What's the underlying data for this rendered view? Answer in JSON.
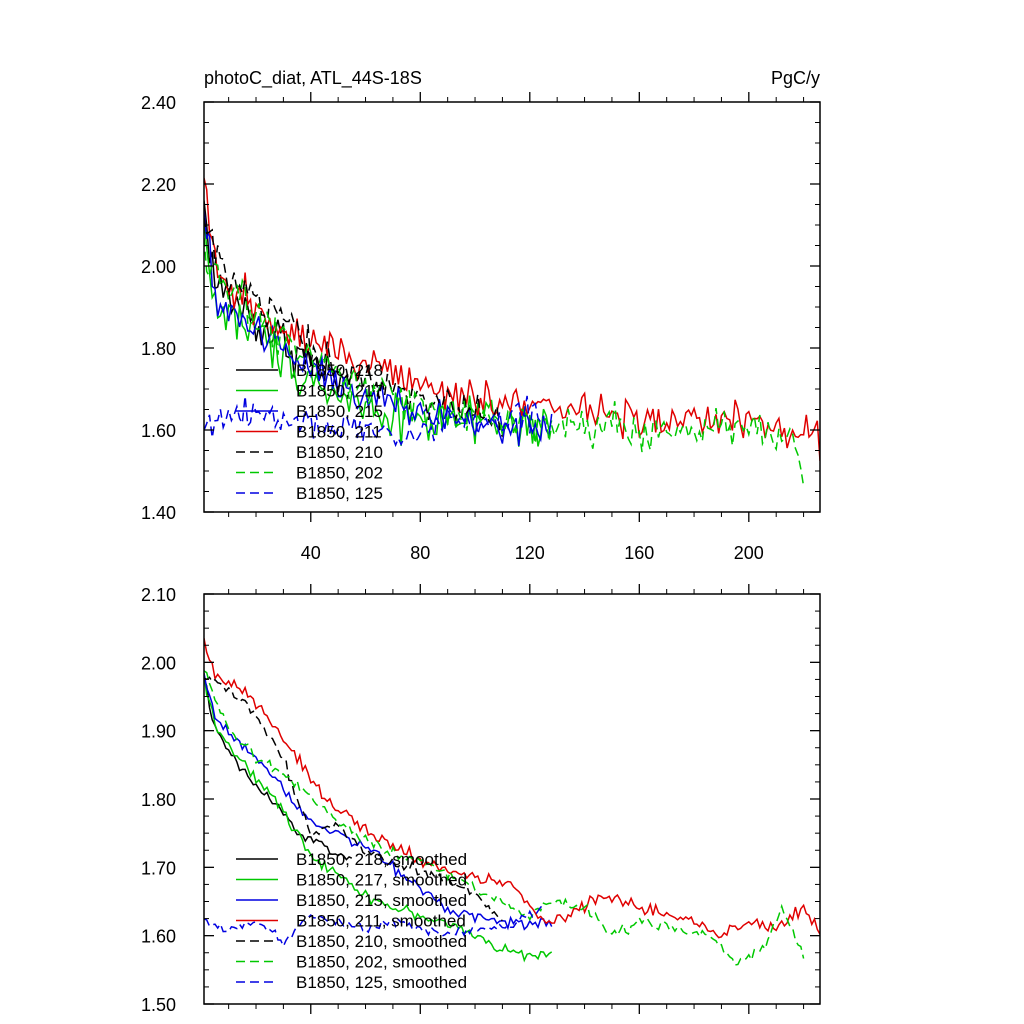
{
  "chart_data": [
    {
      "type": "line",
      "title": "photoC_diat, ATL_44S-18S",
      "units": "PgC/y",
      "xlim": [
        1,
        226
      ],
      "ylim": [
        1.4,
        2.4
      ],
      "xticks": [
        40,
        80,
        120,
        160,
        200
      ],
      "xtick_labels": [
        "40",
        "80",
        "120",
        "160",
        "200"
      ],
      "yticks": [
        1.4,
        1.6,
        1.8,
        2.0,
        2.2,
        2.4
      ],
      "ytick_labels": [
        "1.40",
        "1.60",
        "1.80",
        "2.00",
        "2.20",
        "2.40"
      ],
      "legend_position": "lower-left",
      "series": [
        {
          "name": "B1850, 218",
          "color": "#000000",
          "dash": "solid",
          "length": 55,
          "knots": [
            [
              1,
              2.15
            ],
            [
              5,
              1.96
            ],
            [
              10,
              1.92
            ],
            [
              15,
              1.9
            ],
            [
              20,
              1.86
            ],
            [
              25,
              1.84
            ],
            [
              30,
              1.82
            ],
            [
              40,
              1.76
            ],
            [
              50,
              1.72
            ],
            [
              55,
              1.7
            ]
          ],
          "noise": 0.045
        },
        {
          "name": "B1850, 217",
          "color": "#00c800",
          "dash": "solid",
          "length": 128,
          "knots": [
            [
              1,
              2.1
            ],
            [
              5,
              1.9
            ],
            [
              15,
              1.86
            ],
            [
              30,
              1.78
            ],
            [
              50,
              1.68
            ],
            [
              70,
              1.64
            ],
            [
              90,
              1.62
            ],
            [
              110,
              1.61
            ],
            [
              128,
              1.6
            ]
          ],
          "noise": 0.045
        },
        {
          "name": "B1850, 215",
          "color": "#0000e0",
          "dash": "solid",
          "length": 128,
          "knots": [
            [
              1,
              2.12
            ],
            [
              5,
              1.92
            ],
            [
              15,
              1.87
            ],
            [
              30,
              1.8
            ],
            [
              50,
              1.72
            ],
            [
              70,
              1.66
            ],
            [
              90,
              1.63
            ],
            [
              110,
              1.61
            ],
            [
              128,
              1.6
            ]
          ],
          "noise": 0.04
        },
        {
          "name": "B1850, 211",
          "color": "#e00000",
          "dash": "solid",
          "length": 226,
          "knots": [
            [
              1,
              2.2
            ],
            [
              5,
              1.98
            ],
            [
              20,
              1.9
            ],
            [
              40,
              1.82
            ],
            [
              60,
              1.76
            ],
            [
              80,
              1.71
            ],
            [
              100,
              1.68
            ],
            [
              120,
              1.66
            ],
            [
              140,
              1.64
            ],
            [
              160,
              1.63
            ],
            [
              200,
              1.62
            ],
            [
              226,
              1.58
            ]
          ],
          "noise": 0.035
        },
        {
          "name": "B1850, 210",
          "color": "#000000",
          "dash": "dash",
          "length": 110,
          "knots": [
            [
              1,
              2.1
            ],
            [
              10,
              1.96
            ],
            [
              20,
              1.92
            ],
            [
              35,
              1.84
            ],
            [
              50,
              1.74
            ],
            [
              70,
              1.7
            ],
            [
              90,
              1.66
            ],
            [
              110,
              1.62
            ]
          ],
          "noise": 0.035
        },
        {
          "name": "B1850, 202",
          "color": "#00c800",
          "dash": "dash",
          "length": 220,
          "knots": [
            [
              1,
              2.05
            ],
            [
              10,
              1.94
            ],
            [
              30,
              1.82
            ],
            [
              50,
              1.74
            ],
            [
              70,
              1.68
            ],
            [
              90,
              1.64
            ],
            [
              110,
              1.62
            ],
            [
              130,
              1.62
            ],
            [
              160,
              1.6
            ],
            [
              200,
              1.6
            ],
            [
              215,
              1.6
            ],
            [
              220,
              1.46
            ]
          ],
          "noise": 0.035
        },
        {
          "name": "B1850, 125",
          "color": "#0000e0",
          "dash": "dash",
          "length": 125,
          "knots": [
            [
              1,
              1.62
            ],
            [
              20,
              1.64
            ],
            [
              40,
              1.62
            ],
            [
              60,
              1.6
            ],
            [
              80,
              1.6
            ],
            [
              100,
              1.62
            ],
            [
              125,
              1.64
            ]
          ],
          "noise": 0.03
        }
      ]
    },
    {
      "type": "line",
      "xlim": [
        1,
        226
      ],
      "ylim": [
        1.5,
        2.1
      ],
      "yticks": [
        1.5,
        1.6,
        1.7,
        1.8,
        1.9,
        2.0,
        2.1
      ],
      "ytick_labels": [
        "1.50",
        "1.60",
        "1.70",
        "1.80",
        "1.90",
        "2.00",
        "2.10"
      ],
      "legend_position": "lower-left",
      "series": [
        {
          "name": "B1850, 218, smoothed",
          "color": "#000000",
          "dash": "solid",
          "length": 55,
          "knots": [
            [
              1,
              1.98
            ],
            [
              5,
              1.9
            ],
            [
              10,
              1.87
            ],
            [
              15,
              1.84
            ],
            [
              20,
              1.82
            ],
            [
              25,
              1.8
            ],
            [
              30,
              1.78
            ],
            [
              35,
              1.75
            ],
            [
              40,
              1.74
            ],
            [
              45,
              1.73
            ],
            [
              50,
              1.72
            ],
            [
              55,
              1.71
            ]
          ],
          "noise": 0.006
        },
        {
          "name": "B1850, 217, smoothed",
          "color": "#00c800",
          "dash": "solid",
          "length": 128,
          "knots": [
            [
              1,
              1.98
            ],
            [
              5,
              1.91
            ],
            [
              15,
              1.85
            ],
            [
              25,
              1.81
            ],
            [
              40,
              1.72
            ],
            [
              50,
              1.69
            ],
            [
              60,
              1.66
            ],
            [
              70,
              1.64
            ],
            [
              80,
              1.63
            ],
            [
              95,
              1.61
            ],
            [
              110,
              1.58
            ],
            [
              120,
              1.57
            ],
            [
              128,
              1.57
            ]
          ],
          "noise": 0.006
        },
        {
          "name": "B1850, 215, smoothed",
          "color": "#0000e0",
          "dash": "solid",
          "length": 128,
          "knots": [
            [
              1,
              1.98
            ],
            [
              5,
              1.92
            ],
            [
              15,
              1.88
            ],
            [
              25,
              1.84
            ],
            [
              35,
              1.79
            ],
            [
              40,
              1.77
            ],
            [
              50,
              1.75
            ],
            [
              60,
              1.73
            ],
            [
              70,
              1.7
            ],
            [
              80,
              1.67
            ],
            [
              90,
              1.64
            ],
            [
              100,
              1.63
            ],
            [
              110,
              1.62
            ],
            [
              128,
              1.62
            ]
          ],
          "noise": 0.006
        },
        {
          "name": "B1850, 211, smoothed",
          "color": "#e00000",
          "dash": "solid",
          "length": 226,
          "knots": [
            [
              1,
              2.03
            ],
            [
              5,
              1.98
            ],
            [
              15,
              1.96
            ],
            [
              25,
              1.92
            ],
            [
              35,
              1.86
            ],
            [
              45,
              1.8
            ],
            [
              55,
              1.77
            ],
            [
              65,
              1.74
            ],
            [
              75,
              1.72
            ],
            [
              85,
              1.7
            ],
            [
              95,
              1.69
            ],
            [
              105,
              1.68
            ],
            [
              115,
              1.67
            ],
            [
              125,
              1.62
            ],
            [
              135,
              1.63
            ],
            [
              145,
              1.66
            ],
            [
              160,
              1.64
            ],
            [
              180,
              1.62
            ],
            [
              190,
              1.6
            ],
            [
              200,
              1.62
            ],
            [
              210,
              1.61
            ],
            [
              220,
              1.64
            ],
            [
              226,
              1.61
            ]
          ],
          "noise": 0.007
        },
        {
          "name": "B1850, 210, smoothed",
          "color": "#000000",
          "dash": "dash",
          "length": 110,
          "knots": [
            [
              1,
              1.98
            ],
            [
              10,
              1.96
            ],
            [
              20,
              1.92
            ],
            [
              30,
              1.86
            ],
            [
              35,
              1.8
            ],
            [
              40,
              1.75
            ],
            [
              50,
              1.76
            ],
            [
              60,
              1.72
            ],
            [
              75,
              1.7
            ],
            [
              90,
              1.68
            ],
            [
              100,
              1.66
            ],
            [
              110,
              1.62
            ]
          ],
          "noise": 0.006
        },
        {
          "name": "B1850, 202, smoothed",
          "color": "#00c800",
          "dash": "dash",
          "length": 220,
          "knots": [
            [
              1,
              1.99
            ],
            [
              10,
              1.9
            ],
            [
              20,
              1.86
            ],
            [
              30,
              1.84
            ],
            [
              40,
              1.8
            ],
            [
              55,
              1.75
            ],
            [
              70,
              1.72
            ],
            [
              80,
              1.71
            ],
            [
              95,
              1.68
            ],
            [
              110,
              1.65
            ],
            [
              120,
              1.63
            ],
            [
              130,
              1.65
            ],
            [
              140,
              1.64
            ],
            [
              150,
              1.6
            ],
            [
              160,
              1.62
            ],
            [
              175,
              1.61
            ],
            [
              185,
              1.6
            ],
            [
              195,
              1.56
            ],
            [
              205,
              1.58
            ],
            [
              212,
              1.64
            ],
            [
              220,
              1.57
            ]
          ],
          "noise": 0.006
        },
        {
          "name": "B1850, 125, smoothed",
          "color": "#0000e0",
          "dash": "dash",
          "length": 125,
          "knots": [
            [
              1,
              1.62
            ],
            [
              10,
              1.61
            ],
            [
              20,
              1.62
            ],
            [
              30,
              1.59
            ],
            [
              40,
              1.63
            ],
            [
              50,
              1.62
            ],
            [
              60,
              1.61
            ],
            [
              70,
              1.62
            ],
            [
              80,
              1.61
            ],
            [
              90,
              1.6
            ],
            [
              100,
              1.61
            ],
            [
              110,
              1.61
            ],
            [
              125,
              1.64
            ]
          ],
          "noise": 0.005
        }
      ]
    }
  ]
}
